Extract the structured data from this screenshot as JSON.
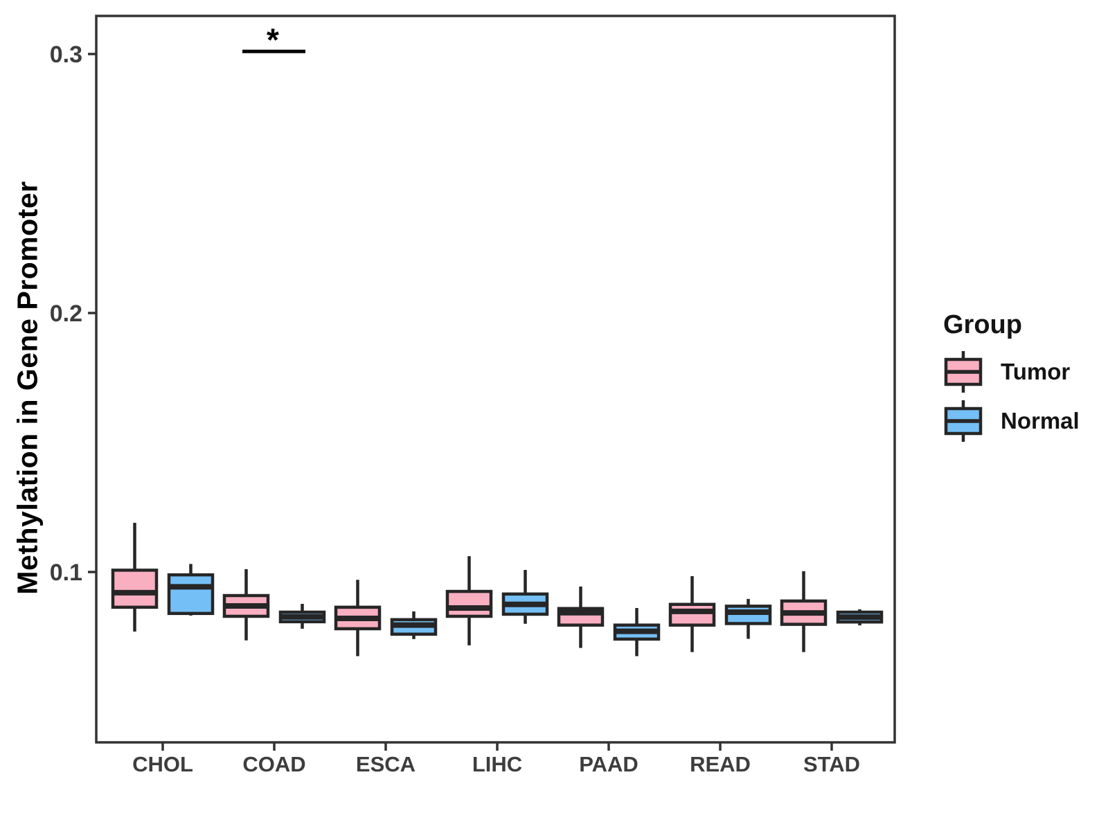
{
  "figure": {
    "background_color": "#FFFFFF",
    "panel_border_color": "#333333",
    "axis_text_color": "#3D3D3D"
  },
  "chart_data": {
    "type": "boxplot",
    "title": "",
    "xlabel": "",
    "ylabel": "Methylation in Gene Promoter",
    "categories": [
      "CHOL",
      "COAD",
      "ESCA",
      "LIHC",
      "PAAD",
      "READ",
      "STAD"
    ],
    "y_ticks": [
      0.1,
      0.2,
      0.3
    ],
    "y_tick_labels": [
      "0.1",
      "0.2",
      "0.3"
    ],
    "ylim": [
      0.034,
      0.315
    ],
    "grid": false,
    "legend": {
      "title": "Group",
      "position": "right",
      "entries": [
        {
          "label": "Tumor",
          "color": "#FAAFC1"
        },
        {
          "label": "Normal",
          "color": "#74BFF5"
        }
      ]
    },
    "box_stroke_color": "#262626",
    "series": [
      {
        "name": "Tumor",
        "color": "#FAAFC1",
        "boxes": [
          {
            "category": "CHOL",
            "whisker_low": 0.077,
            "q1": 0.0864,
            "median": 0.092,
            "q3": 0.1007,
            "whisker_high": 0.119
          },
          {
            "category": "COAD",
            "whisker_low": 0.0736,
            "q1": 0.0829,
            "median": 0.0869,
            "q3": 0.0909,
            "whisker_high": 0.1011
          },
          {
            "category": "ESCA",
            "whisker_low": 0.0675,
            "q1": 0.0781,
            "median": 0.0821,
            "q3": 0.0864,
            "whisker_high": 0.097
          },
          {
            "category": "LIHC",
            "whisker_low": 0.0717,
            "q1": 0.0829,
            "median": 0.0861,
            "q3": 0.0925,
            "whisker_high": 0.1061
          },
          {
            "category": "PAAD",
            "whisker_low": 0.0707,
            "q1": 0.0795,
            "median": 0.0843,
            "q3": 0.0859,
            "whisker_high": 0.0944
          },
          {
            "category": "READ",
            "whisker_low": 0.0691,
            "q1": 0.0795,
            "median": 0.0848,
            "q3": 0.0875,
            "whisker_high": 0.0984
          },
          {
            "category": "STAD",
            "whisker_low": 0.0691,
            "q1": 0.0798,
            "median": 0.0842,
            "q3": 0.0888,
            "whisker_high": 0.1003
          }
        ]
      },
      {
        "name": "Normal",
        "color": "#74BFF5",
        "boxes": [
          {
            "category": "CHOL",
            "whisker_low": 0.0832,
            "q1": 0.084,
            "median": 0.0943,
            "q3": 0.0989,
            "whisker_high": 0.1031
          },
          {
            "category": "COAD",
            "whisker_low": 0.0781,
            "q1": 0.0808,
            "median": 0.0827,
            "q3": 0.0845,
            "whisker_high": 0.0877
          },
          {
            "category": "ESCA",
            "whisker_low": 0.0741,
            "q1": 0.076,
            "median": 0.0795,
            "q3": 0.0816,
            "whisker_high": 0.0848
          },
          {
            "category": "LIHC",
            "whisker_low": 0.08,
            "q1": 0.0837,
            "median": 0.0875,
            "q3": 0.0915,
            "whisker_high": 0.1008
          },
          {
            "category": "PAAD",
            "whisker_low": 0.0675,
            "q1": 0.0741,
            "median": 0.0771,
            "q3": 0.0795,
            "whisker_high": 0.0861
          },
          {
            "category": "READ",
            "whisker_low": 0.0742,
            "q1": 0.0801,
            "median": 0.0845,
            "q3": 0.0868,
            "whisker_high": 0.0896
          },
          {
            "category": "STAD",
            "whisker_low": 0.0794,
            "q1": 0.0807,
            "median": 0.0826,
            "q3": 0.0845,
            "whisker_high": 0.0856
          }
        ]
      }
    ],
    "annotations": [
      {
        "type": "significance-bracket",
        "label": "*",
        "category": "COAD",
        "between": [
          "Tumor",
          "Normal"
        ],
        "y": 0.301
      }
    ]
  }
}
